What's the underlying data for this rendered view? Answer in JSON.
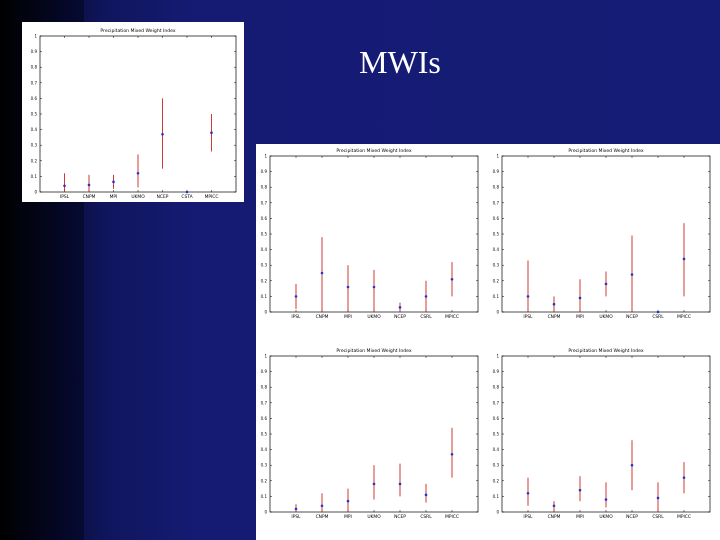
{
  "slide": {
    "title": "MWIs"
  },
  "chart_data": [
    {
      "type": "scatter",
      "title": "Precipitation Mixed Weight Index",
      "categories": [
        "IPSL",
        "CNPM",
        "MPI",
        "UKMO",
        "NCEP",
        "CSTA",
        "MPICC"
      ],
      "values": [
        0.04,
        0.045,
        0.065,
        0.12,
        0.37,
        0.0,
        0.38
      ],
      "err_low": [
        0.0,
        0.0,
        0.02,
        0.03,
        0.15,
        0.0,
        0.26
      ],
      "err_high": [
        0.12,
        0.11,
        0.11,
        0.24,
        0.6,
        0.0,
        0.5
      ],
      "yticks": [
        "0",
        "0.1",
        "0.2",
        "0.3",
        "0.4",
        "0.5",
        "0.6",
        "0.7",
        "0.8",
        "0.9",
        "1"
      ],
      "ylim": [
        0,
        1
      ],
      "marker_color": "#2233cc",
      "error_color": "#cc2222"
    },
    {
      "type": "scatter",
      "title": "Precipitation Mixed Weight Index",
      "categories": [
        "IPSL",
        "CNPM",
        "MPI",
        "UKMO",
        "NCEP",
        "CSRL",
        "MPICC"
      ],
      "values": [
        0.1,
        0.25,
        0.16,
        0.16,
        0.03,
        0.1,
        0.21
      ],
      "err_low": [
        0.02,
        0.0,
        0.0,
        0.0,
        0.0,
        0.0,
        0.1
      ],
      "err_high": [
        0.18,
        0.48,
        0.3,
        0.27,
        0.06,
        0.2,
        0.32
      ],
      "yticks": [
        "0",
        "0.1",
        "0.2",
        "0.3",
        "0.4",
        "0.5",
        "0.6",
        "0.7",
        "0.8",
        "0.9",
        "1"
      ],
      "ylim": [
        0,
        1
      ],
      "marker_color": "#2233cc",
      "error_color": "#cc2222"
    },
    {
      "type": "scatter",
      "title": "Precipitation Mixed Weight Index",
      "categories": [
        "IPSL",
        "CNPM",
        "MPI",
        "UKMO",
        "NCEP",
        "CSRL",
        "MPICC"
      ],
      "values": [
        0.1,
        0.05,
        0.09,
        0.18,
        0.24,
        0.0,
        0.34
      ],
      "err_low": [
        0.0,
        0.0,
        0.0,
        0.1,
        0.0,
        0.0,
        0.1
      ],
      "err_high": [
        0.33,
        0.1,
        0.21,
        0.26,
        0.49,
        0.0,
        0.57
      ],
      "yticks": [
        "0",
        "0.1",
        "0.2",
        "0.3",
        "0.4",
        "0.5",
        "0.6",
        "0.7",
        "0.8",
        "0.9",
        "1"
      ],
      "ylim": [
        0,
        1
      ],
      "marker_color": "#2233cc",
      "error_color": "#cc2222"
    },
    {
      "type": "scatter",
      "title": "Precipitation Mixed Weight Index",
      "categories": [
        "IPSL",
        "CNPM",
        "MPI",
        "UKMO",
        "NCEP",
        "CSRL",
        "MPICC"
      ],
      "values": [
        0.02,
        0.04,
        0.07,
        0.18,
        0.18,
        0.11,
        0.37
      ],
      "err_low": [
        0.0,
        0.0,
        0.0,
        0.08,
        0.1,
        0.06,
        0.22
      ],
      "err_high": [
        0.05,
        0.12,
        0.15,
        0.3,
        0.31,
        0.18,
        0.54
      ],
      "yticks": [
        "0",
        "0.1",
        "0.2",
        "0.3",
        "0.4",
        "0.5",
        "0.6",
        "0.7",
        "0.8",
        "0.9",
        "1"
      ],
      "ylim": [
        0,
        1
      ],
      "marker_color": "#2233cc",
      "error_color": "#cc2222"
    },
    {
      "type": "scatter",
      "title": "Precipitation Mixed Weight Index",
      "categories": [
        "IPSL",
        "CNPM",
        "MPI",
        "UKMO",
        "NCEP",
        "CSRL",
        "MPICC"
      ],
      "values": [
        0.12,
        0.04,
        0.14,
        0.08,
        0.3,
        0.09,
        0.22
      ],
      "err_low": [
        0.04,
        0.0,
        0.07,
        0.03,
        0.14,
        0.0,
        0.12
      ],
      "err_high": [
        0.22,
        0.07,
        0.23,
        0.19,
        0.46,
        0.19,
        0.32
      ],
      "yticks": [
        "0",
        "0.1",
        "0.2",
        "0.3",
        "0.4",
        "0.5",
        "0.6",
        "0.7",
        "0.8",
        "0.9",
        "1"
      ],
      "ylim": [
        0,
        1
      ],
      "marker_color": "#2233cc",
      "error_color": "#cc2222"
    }
  ]
}
